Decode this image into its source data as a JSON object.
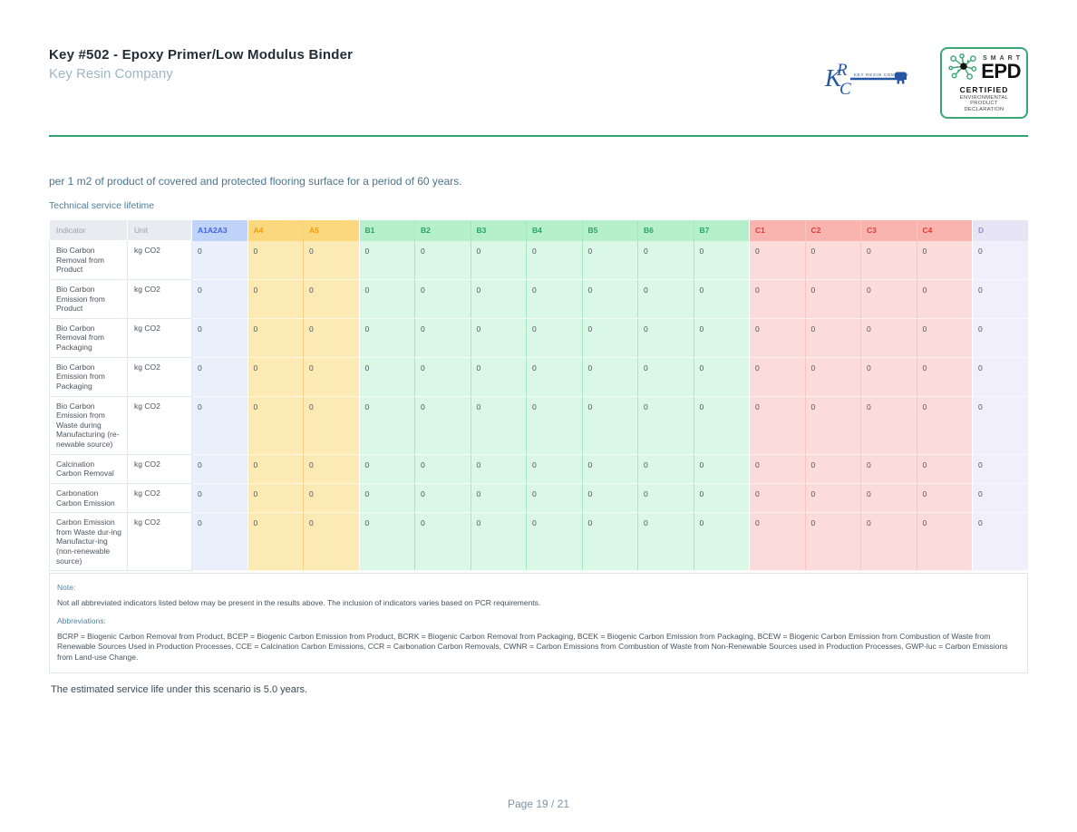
{
  "header": {
    "title": "Key #502 - Epoxy Primer/Low Modulus Binder",
    "subtitle": "Key Resin Company"
  },
  "logos": {
    "krc": {
      "letters": [
        "K",
        "R",
        "C"
      ],
      "company_text": "Key Resin Company",
      "color": "#2456a4"
    },
    "epd": {
      "smart": "SMART",
      "name": "EPD",
      "certified": "CERTIFIED",
      "line1": "ENVIRONMENTAL PRODUCT",
      "line2": "DECLARATION",
      "border_color": "#3aa673"
    }
  },
  "intro": {
    "text": "per 1 m2 of product of covered and protected flooring surface for a period of 60 years.",
    "section_heading": "Technical service lifetime"
  },
  "table": {
    "headers": {
      "indicator": "Indicator",
      "unit": "Unit"
    },
    "columns": [
      {
        "label": "A1A2A3",
        "group": "blue"
      },
      {
        "label": "A4",
        "group": "amber"
      },
      {
        "label": "A5",
        "group": "amber"
      },
      {
        "label": "B1",
        "group": "green"
      },
      {
        "label": "B2",
        "group": "green"
      },
      {
        "label": "B3",
        "group": "green"
      },
      {
        "label": "B4",
        "group": "green"
      },
      {
        "label": "B5",
        "group": "green"
      },
      {
        "label": "B6",
        "group": "green"
      },
      {
        "label": "B7",
        "group": "green"
      },
      {
        "label": "C1",
        "group": "red"
      },
      {
        "label": "C2",
        "group": "red"
      },
      {
        "label": "C3",
        "group": "red"
      },
      {
        "label": "C4",
        "group": "red"
      },
      {
        "label": "D",
        "group": "purple"
      }
    ],
    "groups": {
      "blue": {
        "header_bg": "#c0d3f8",
        "header_text": "#4365e8",
        "cell_bg": "#e9effb",
        "border": "#d2ddf5"
      },
      "amber": {
        "header_bg": "#fbd77d",
        "header_text": "#f49d07",
        "cell_bg": "#fceab4",
        "border": "#f6d082"
      },
      "green": {
        "header_bg": "#b5efcc",
        "header_text": "#2ba562",
        "cell_bg": "#dbf7e6",
        "border": "#a3e8c2"
      },
      "red": {
        "header_bg": "#fab4b0",
        "header_text": "#e23b37",
        "cell_bg": "#fcdcda",
        "border": "#f8c5c1"
      },
      "purple": {
        "header_bg": "#e7e5f5",
        "header_text": "#938dd3",
        "cell_bg": "#f0effb",
        "border": "#ded9f0"
      }
    },
    "rows": [
      {
        "indicator": "Bio Carbon Removal from Product",
        "unit": "kg CO2",
        "values": [
          "0",
          "0",
          "0",
          "0",
          "0",
          "0",
          "0",
          "0",
          "0",
          "0",
          "0",
          "0",
          "0",
          "0",
          "0"
        ]
      },
      {
        "indicator": "Bio Carbon Emission from Product",
        "unit": "kg CO2",
        "values": [
          "0",
          "0",
          "0",
          "0",
          "0",
          "0",
          "0",
          "0",
          "0",
          "0",
          "0",
          "0",
          "0",
          "0",
          "0"
        ]
      },
      {
        "indicator": "Bio Carbon Removal from Packaging",
        "unit": "kg CO2",
        "values": [
          "0",
          "0",
          "0",
          "0",
          "0",
          "0",
          "0",
          "0",
          "0",
          "0",
          "0",
          "0",
          "0",
          "0",
          "0"
        ]
      },
      {
        "indicator": "Bio Carbon Emission from Packaging",
        "unit": "kg CO2",
        "values": [
          "0",
          "0",
          "0",
          "0",
          "0",
          "0",
          "0",
          "0",
          "0",
          "0",
          "0",
          "0",
          "0",
          "0",
          "0"
        ]
      },
      {
        "indicator": "Bio Carbon Emission from Waste during Manufacturing (re-newable source)",
        "unit": "kg CO2",
        "values": [
          "0",
          "0",
          "0",
          "0",
          "0",
          "0",
          "0",
          "0",
          "0",
          "0",
          "0",
          "0",
          "0",
          "0",
          "0"
        ]
      },
      {
        "indicator": "Calcination Carbon Removal",
        "unit": "kg CO2",
        "values": [
          "0",
          "0",
          "0",
          "0",
          "0",
          "0",
          "0",
          "0",
          "0",
          "0",
          "0",
          "0",
          "0",
          "0",
          "0"
        ]
      },
      {
        "indicator": "Carbonation Carbon Emission",
        "unit": "kg CO2",
        "values": [
          "0",
          "0",
          "0",
          "0",
          "0",
          "0",
          "0",
          "0",
          "0",
          "0",
          "0",
          "0",
          "0",
          "0",
          "0"
        ]
      },
      {
        "indicator": "Carbon Emission from Waste dur-ing Manufactur-ing (non-renewable source)",
        "unit": "kg CO2",
        "values": [
          "0",
          "0",
          "0",
          "0",
          "0",
          "0",
          "0",
          "0",
          "0",
          "0",
          "0",
          "0",
          "0",
          "0",
          "0"
        ]
      }
    ]
  },
  "notes": {
    "note_label": "Note:",
    "note_text": "Not all abbreviated indicators listed below may be present in the results above. The inclusion of indicators varies based on PCR requirements.",
    "abbreviations_label": "Abbreviations:",
    "abbreviations_text": "BCRP = Biogenic Carbon Removal from Product, BCEP = Biogenic Carbon Emission from Product, BCRK = Biogenic Carbon Removal from Packaging, BCEK = Biogenic Carbon Emission from Packaging, BCEW = Biogenic Carbon Emission from Combustion of Waste from Renewable Sources Used in Production Processes, CCE = Calcination Carbon Emissions, CCR = Carbonation Carbon Removals, CWNR = Carbon Emissions from Combustion of Waste from Non-Renewable Sources used in Production Processes, GWP-luc = Carbon Emissions from Land-use Change."
  },
  "summary": {
    "text": "The estimated service life under this scenario is 5.0 years."
  },
  "footer": {
    "text": "Page 19 / 21"
  },
  "theme": {
    "divider_green": "#2ea36e"
  }
}
